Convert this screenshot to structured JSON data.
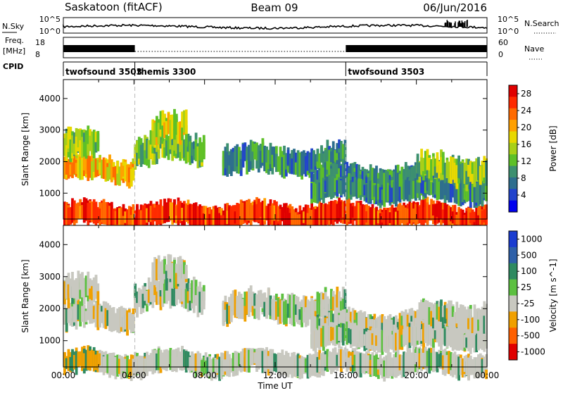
{
  "header": {
    "site": "Saskatoon (fitACF)",
    "beam": "Beam 09",
    "date": "06/Jun/2016"
  },
  "top_panels": {
    "noise": {
      "left_label": "N.Sky",
      "right_label": "N.Search",
      "left_ticks": [
        "10^5",
        "10^0"
      ],
      "right_ticks": [
        "10^5",
        "10^0"
      ]
    },
    "freq": {
      "left_label": "Freq.",
      "left_unit": "[MHz]",
      "left_ticks": [
        "18",
        "8"
      ],
      "right_label": "Nave",
      "right_ticks": [
        "60",
        "0"
      ]
    },
    "cpid": {
      "label": "CPID",
      "segments": [
        {
          "name": "twofsound 3503",
          "start_hour": 0
        },
        {
          "name": "themis 3300",
          "start_hour": 4.05
        },
        {
          "name": "twofsound 3503",
          "start_hour": 16
        }
      ]
    }
  },
  "chart_data": [
    {
      "type": "heatmap",
      "title": "",
      "quantity": "Power",
      "colorbar_label": "Power [dB]",
      "colorbar_ticks": [
        4,
        8,
        12,
        16,
        20,
        24,
        28
      ],
      "colorbar_colors": [
        "#0000ee",
        "#2244cc",
        "#2e6e8e",
        "#3d9070",
        "#5dc028",
        "#a8d018",
        "#e8d800",
        "#ffa000",
        "#ff6a00",
        "#ff2a00",
        "#e00000"
      ],
      "ylabel": "Slant Range [km]",
      "y_ticks": [
        1000,
        2000,
        3000,
        4000
      ],
      "ylim": [
        180,
        4600
      ],
      "xlim_hours": [
        0,
        24
      ],
      "approximate_echo_bands": [
        {
          "t0": 0,
          "t1": 24,
          "r_center": 300,
          "r_width": 180,
          "level": 27
        },
        {
          "t0": 0,
          "t1": 4,
          "r_center": 1750,
          "r_width": 300,
          "level": 20
        },
        {
          "t0": 0,
          "t1": 2,
          "r_center": 2500,
          "r_width": 500,
          "level": 14
        },
        {
          "t0": 4,
          "t1": 8,
          "r_center": 2400,
          "r_width": 500,
          "level": 12
        },
        {
          "t0": 5,
          "t1": 7,
          "r_center": 3000,
          "r_width": 500,
          "level": 16
        },
        {
          "t0": 9,
          "t1": 16,
          "r_center": 2050,
          "r_width": 400,
          "level": 8
        },
        {
          "t0": 14,
          "t1": 24,
          "r_center": 1500,
          "r_width": 200,
          "level": 8
        },
        {
          "t0": 14,
          "t1": 24,
          "r_center": 1100,
          "r_width": 150,
          "level": 8
        },
        {
          "t0": 20,
          "t1": 24,
          "r_center": 1750,
          "r_width": 400,
          "level": 14
        }
      ]
    },
    {
      "type": "heatmap",
      "title": "",
      "quantity": "Velocity",
      "colorbar_label": "Velocity [m s^-1]",
      "colorbar_ticks": [
        1000,
        500,
        100,
        25,
        -25,
        -100,
        -500,
        -1000
      ],
      "colorbar_colors": [
        "#1a3cd0",
        "#2e60a8",
        "#2e8a60",
        "#5cc040",
        "#c8c8c0",
        "#f0a000",
        "#ff6000",
        "#e00000"
      ],
      "ylabel": "Slant Range [km]",
      "y_ticks": [
        1000,
        2000,
        3000,
        4000
      ],
      "ylim": [
        180,
        4600
      ],
      "xlim_hours": [
        0,
        24
      ],
      "xlabel": "Time UT",
      "x_ticks": [
        "00:00",
        "04:00",
        "08:00",
        "12:00",
        "16:00",
        "20:00",
        "00:00"
      ]
    }
  ]
}
